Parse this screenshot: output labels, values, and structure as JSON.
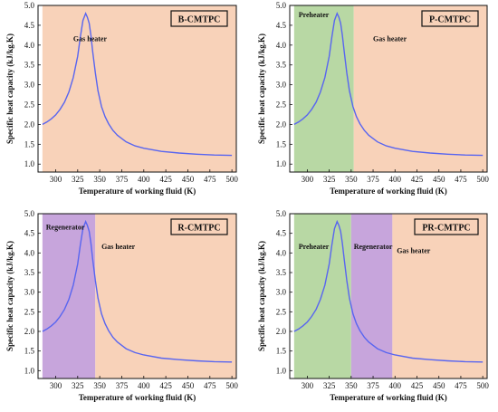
{
  "chart_data": [
    {
      "type": "line",
      "title": "B-CMTPC",
      "xlabel": "Temperature of working fluid (K)",
      "ylabel": "Specific heat capacity (kJ/kg.K)",
      "xlim": [
        280,
        505
      ],
      "ylim": [
        0.8,
        5.0
      ],
      "xticks": [
        "300",
        "325",
        "350",
        "375",
        "400",
        "425",
        "450",
        "475",
        "500"
      ],
      "yticks": [
        "1.0",
        "1.5",
        "2.0",
        "2.5",
        "3.0",
        "3.5",
        "4.0",
        "4.5",
        "5.0"
      ],
      "regions": [
        {
          "label": "Gas heater",
          "x": [
            285,
            505
          ],
          "color": "#f8d2b9",
          "label_x": 320,
          "label_y": 4.1
        }
      ],
      "series": [
        {
          "color": "#5865f0",
          "x": [
            285,
            290,
            295,
            300,
            305,
            310,
            315,
            320,
            325,
            328,
            331,
            334,
            336,
            338,
            340,
            342,
            345,
            348,
            352,
            356,
            360,
            365,
            370,
            380,
            390,
            400,
            420,
            440,
            460,
            480,
            500
          ],
          "y": [
            2.0,
            2.06,
            2.14,
            2.24,
            2.38,
            2.56,
            2.82,
            3.18,
            3.72,
            4.2,
            4.62,
            4.8,
            4.7,
            4.55,
            4.25,
            3.85,
            3.3,
            2.85,
            2.45,
            2.2,
            2.02,
            1.85,
            1.73,
            1.56,
            1.46,
            1.4,
            1.32,
            1.28,
            1.25,
            1.23,
            1.22
          ]
        }
      ]
    },
    {
      "type": "line",
      "title": "P-CMTPC",
      "xlabel": "Temperature of working fluid (K)",
      "ylabel": "Specific heat capacity (kJ/kg.K)",
      "xlim": [
        280,
        505
      ],
      "ylim": [
        0.8,
        5.0
      ],
      "xticks": [
        "300",
        "325",
        "350",
        "375",
        "400",
        "425",
        "450",
        "475",
        "500"
      ],
      "yticks": [
        "1.0",
        "1.5",
        "2.0",
        "2.5",
        "3.0",
        "3.5",
        "4.0",
        "4.5",
        "5.0"
      ],
      "regions": [
        {
          "label": "Preheater",
          "x": [
            285,
            353
          ],
          "color": "#b8d8a4",
          "label_x": 290,
          "label_y": 4.7
        },
        {
          "label": "Gas heater",
          "x": [
            353,
            505
          ],
          "color": "#f8d2b9",
          "label_x": 375,
          "label_y": 4.1
        }
      ],
      "series": [
        {
          "color": "#5865f0",
          "x": [
            285,
            290,
            295,
            300,
            305,
            310,
            315,
            320,
            325,
            328,
            331,
            334,
            336,
            338,
            340,
            342,
            345,
            348,
            352,
            356,
            360,
            365,
            370,
            380,
            390,
            400,
            420,
            440,
            460,
            480,
            500
          ],
          "y": [
            2.0,
            2.06,
            2.14,
            2.24,
            2.38,
            2.56,
            2.82,
            3.18,
            3.72,
            4.2,
            4.62,
            4.8,
            4.7,
            4.55,
            4.25,
            3.85,
            3.3,
            2.85,
            2.45,
            2.2,
            2.02,
            1.85,
            1.73,
            1.56,
            1.46,
            1.4,
            1.32,
            1.28,
            1.25,
            1.23,
            1.22
          ]
        }
      ]
    },
    {
      "type": "line",
      "title": "R-CMTPC",
      "xlabel": "Temperature of working fluid (K)",
      "ylabel": "Specific heat capacity (kJ/kg.K)",
      "xlim": [
        280,
        505
      ],
      "ylim": [
        0.8,
        5.0
      ],
      "xticks": [
        "300",
        "325",
        "350",
        "375",
        "400",
        "425",
        "450",
        "475",
        "500"
      ],
      "yticks": [
        "1.0",
        "1.5",
        "2.0",
        "2.5",
        "3.0",
        "3.5",
        "4.0",
        "4.5",
        "5.0"
      ],
      "regions": [
        {
          "label": "Regenerator",
          "x": [
            285,
            345
          ],
          "color": "#c7a5dc",
          "label_x": 289,
          "label_y": 4.6
        },
        {
          "label": "Gas heater",
          "x": [
            345,
            505
          ],
          "color": "#f8d2b9",
          "label_x": 352,
          "label_y": 4.1
        }
      ],
      "series": [
        {
          "color": "#5865f0",
          "x": [
            285,
            290,
            295,
            300,
            305,
            310,
            315,
            320,
            325,
            328,
            331,
            334,
            336,
            338,
            340,
            342,
            345,
            348,
            352,
            356,
            360,
            365,
            370,
            380,
            390,
            400,
            420,
            440,
            460,
            480,
            500
          ],
          "y": [
            2.0,
            2.06,
            2.14,
            2.24,
            2.38,
            2.56,
            2.82,
            3.18,
            3.72,
            4.2,
            4.62,
            4.8,
            4.7,
            4.55,
            4.25,
            3.85,
            3.3,
            2.85,
            2.45,
            2.2,
            2.02,
            1.85,
            1.73,
            1.56,
            1.46,
            1.4,
            1.32,
            1.28,
            1.25,
            1.23,
            1.22
          ]
        }
      ]
    },
    {
      "type": "line",
      "title": "PR-CMTPC",
      "xlabel": "Temperature of working fluid (K)",
      "ylabel": "Specific heat capacity (kJ/kg.K)",
      "xlim": [
        280,
        505
      ],
      "ylim": [
        0.8,
        5.0
      ],
      "xticks": [
        "300",
        "325",
        "350",
        "375",
        "400",
        "425",
        "450",
        "475",
        "500"
      ],
      "yticks": [
        "1.0",
        "1.5",
        "2.0",
        "2.5",
        "3.0",
        "3.5",
        "4.0",
        "4.5",
        "5.0"
      ],
      "regions": [
        {
          "label": "Preheater",
          "x": [
            285,
            350
          ],
          "color": "#b8d8a4",
          "label_x": 290,
          "label_y": 4.1
        },
        {
          "label": "Regenerator",
          "x": [
            350,
            397
          ],
          "color": "#c7a5dc",
          "label_x": 353,
          "label_y": 4.1
        },
        {
          "label": "Gas heater",
          "x": [
            397,
            505
          ],
          "color": "#f8d2b9",
          "label_x": 402,
          "label_y": 4.0
        }
      ],
      "series": [
        {
          "color": "#5865f0",
          "x": [
            285,
            290,
            295,
            300,
            305,
            310,
            315,
            320,
            325,
            328,
            331,
            334,
            336,
            338,
            340,
            342,
            345,
            348,
            352,
            356,
            360,
            365,
            370,
            380,
            390,
            400,
            420,
            440,
            460,
            480,
            500
          ],
          "y": [
            2.0,
            2.06,
            2.14,
            2.24,
            2.38,
            2.56,
            2.82,
            3.18,
            3.72,
            4.2,
            4.62,
            4.8,
            4.7,
            4.55,
            4.25,
            3.85,
            3.3,
            2.85,
            2.45,
            2.2,
            2.02,
            1.85,
            1.73,
            1.56,
            1.46,
            1.4,
            1.32,
            1.28,
            1.25,
            1.23,
            1.22
          ]
        }
      ]
    }
  ]
}
